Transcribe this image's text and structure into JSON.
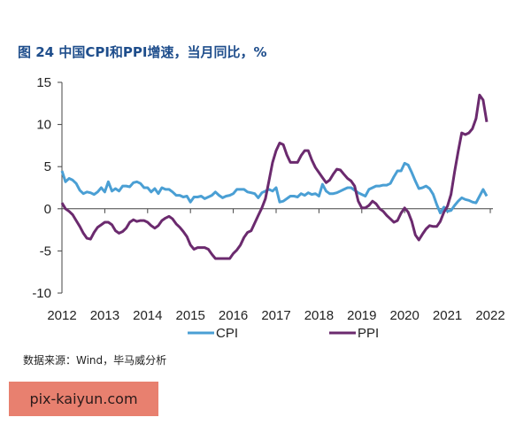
{
  "title": "图 24 中国CPI和PPI增速，当月同比，%",
  "source": "数据来源：Wind，毕马威分析",
  "watermark": "pix-kaiyun.com",
  "chart_data": {
    "type": "line",
    "title": "图 24 中国CPI和PPI增速，当月同比，%",
    "xlabel": "",
    "ylabel": "",
    "x_start": "2012-01",
    "x_end": "2021-12",
    "frequency": "monthly",
    "xticks": [
      "2012",
      "2013",
      "2014",
      "2015",
      "2016",
      "2017",
      "2018",
      "2019",
      "2020",
      "2021",
      "2022"
    ],
    "yticks": [
      15,
      10,
      5,
      0,
      -5,
      -10
    ],
    "ylim": [
      -10,
      15
    ],
    "legend_position": "bottom",
    "grid": false,
    "series": [
      {
        "name": "CPI",
        "color": "#4a9fd4",
        "values": [
          4.5,
          3.2,
          3.6,
          3.4,
          3.0,
          2.2,
          1.8,
          2.0,
          1.9,
          1.7,
          2.0,
          2.5,
          2.0,
          3.2,
          2.1,
          2.4,
          2.1,
          2.7,
          2.7,
          2.6,
          3.1,
          3.2,
          3.0,
          2.5,
          2.5,
          2.0,
          2.4,
          1.8,
          2.5,
          2.3,
          2.3,
          2.0,
          1.6,
          1.6,
          1.4,
          1.5,
          0.8,
          1.4,
          1.4,
          1.5,
          1.2,
          1.4,
          1.6,
          2.0,
          1.6,
          1.3,
          1.5,
          1.6,
          1.8,
          2.3,
          2.3,
          2.3,
          2.0,
          1.9,
          1.8,
          1.3,
          1.9,
          2.1,
          2.3,
          2.1,
          2.5,
          0.8,
          0.9,
          1.2,
          1.5,
          1.5,
          1.4,
          1.8,
          1.6,
          1.9,
          1.7,
          1.8,
          1.5,
          2.9,
          2.1,
          1.8,
          1.8,
          1.9,
          2.1,
          2.3,
          2.5,
          2.5,
          2.2,
          1.9,
          1.7,
          1.5,
          2.3,
          2.5,
          2.7,
          2.7,
          2.8,
          2.8,
          3.0,
          3.8,
          4.5,
          4.5,
          5.4,
          5.2,
          4.3,
          3.3,
          2.4,
          2.5,
          2.7,
          2.4,
          1.7,
          0.5,
          -0.5,
          0.2,
          -0.3,
          -0.2,
          0.4,
          0.9,
          1.3,
          1.1,
          1.0,
          0.8,
          0.7,
          1.5,
          2.3,
          1.5
        ]
      },
      {
        "name": "PPI",
        "color": "#6b2a6e",
        "values": [
          0.7,
          0.0,
          -0.3,
          -0.7,
          -1.4,
          -2.1,
          -2.9,
          -3.5,
          -3.6,
          -2.8,
          -2.2,
          -1.9,
          -1.6,
          -1.6,
          -1.9,
          -2.6,
          -2.9,
          -2.7,
          -2.3,
          -1.6,
          -1.3,
          -1.5,
          -1.4,
          -1.4,
          -1.6,
          -2.0,
          -2.3,
          -2.0,
          -1.4,
          -1.1,
          -0.9,
          -1.2,
          -1.8,
          -2.2,
          -2.7,
          -3.3,
          -4.3,
          -4.8,
          -4.6,
          -4.6,
          -4.6,
          -4.8,
          -5.4,
          -5.9,
          -5.9,
          -5.9,
          -5.9,
          -5.9,
          -5.3,
          -4.9,
          -4.3,
          -3.4,
          -2.8,
          -2.6,
          -1.7,
          -0.8,
          0.1,
          1.2,
          3.3,
          5.5,
          6.9,
          7.8,
          7.6,
          6.4,
          5.5,
          5.5,
          5.5,
          6.3,
          6.9,
          6.9,
          5.8,
          4.9,
          4.3,
          3.7,
          3.1,
          3.4,
          4.1,
          4.7,
          4.6,
          4.1,
          3.6,
          3.3,
          2.7,
          0.9,
          0.1,
          0.1,
          0.4,
          0.9,
          0.6,
          0.0,
          -0.3,
          -0.8,
          -1.2,
          -1.6,
          -1.4,
          -0.5,
          0.1,
          -0.4,
          -1.5,
          -3.1,
          -3.7,
          -3.0,
          -2.4,
          -2.0,
          -2.1,
          -2.1,
          -1.5,
          -0.4,
          0.3,
          1.7,
          4.4,
          6.8,
          9.0,
          8.8,
          9.0,
          9.5,
          10.7,
          13.5,
          12.9,
          10.3
        ]
      }
    ]
  }
}
